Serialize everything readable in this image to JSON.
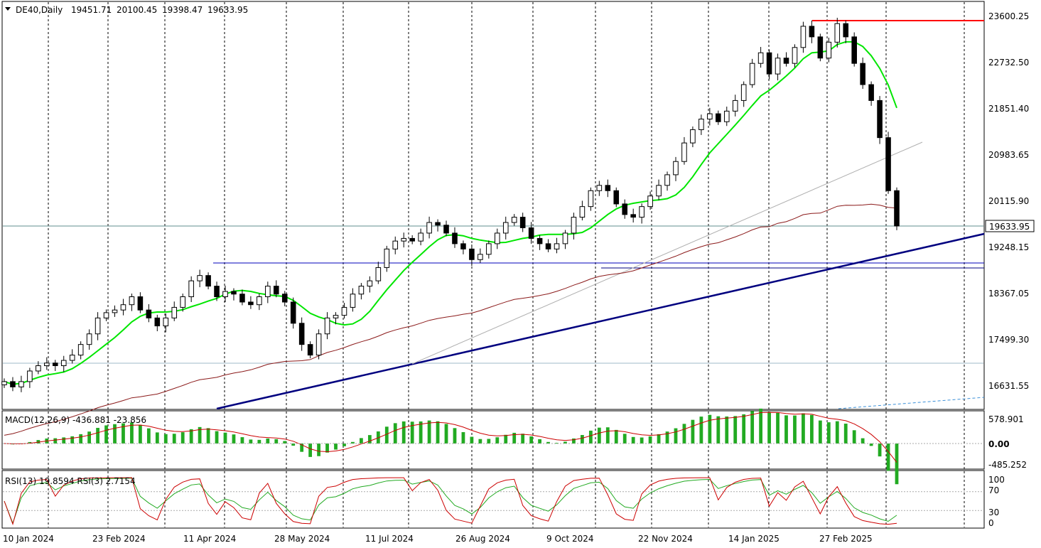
{
  "chart_data": [
    {
      "type": "candlestick",
      "title": "DE40,Daily",
      "ohlc_readout": [
        "19451.71",
        "20100.45",
        "19398.47",
        "19633.95"
      ],
      "last_price_label": "19633.95",
      "y_ticks": [
        "23600.25",
        "22732.50",
        "21851.40",
        "20983.65",
        "20115.90",
        "19248.15",
        "18367.05",
        "17499.30",
        "16631.55"
      ],
      "ylim": [
        16000,
        23800
      ],
      "last_price": 19633.95,
      "x_labels": [
        "10 Jan 2024",
        "23 Feb 2024",
        "11 Apr 2024",
        "28 May 2024",
        "11 Jul 2024",
        "26 Aug 2024",
        "9 Oct 2024",
        "22 Nov 2024",
        "14 Jan 2025",
        "27 Feb 2025"
      ],
      "colors": {
        "fast_ma": "#00e600",
        "slow_ma": "#8b1a1a",
        "trendline": "#00007f",
        "resistance": "#ff0000",
        "support": "#0000bb",
        "candle_up": "#000000",
        "candle_down": "#000000"
      },
      "series": [
        {
          "values": [
            16700,
            16600,
            16700,
            16900,
            17000,
            17050,
            17000,
            17100,
            17200,
            17400,
            17600,
            17900,
            18000,
            18050,
            18150,
            18300,
            18050,
            17900,
            17750,
            17900,
            18100,
            18300,
            18600,
            18700,
            18500,
            18300,
            18400,
            18350,
            18200,
            18150,
            18300,
            18500,
            18350,
            18200,
            17800,
            17400,
            17200,
            17600,
            17900,
            17950,
            18100,
            18350,
            18500,
            18600,
            18850,
            19200,
            19350,
            19400,
            19350,
            19500,
            19700,
            19650,
            19500,
            19300,
            19200,
            19000,
            19100,
            19300,
            19500,
            19700,
            19800,
            19600,
            19400,
            19300,
            19200,
            19300,
            19500,
            19800,
            20000,
            20300,
            20400,
            20300,
            20050,
            19850,
            19800,
            20000,
            20200,
            20400,
            20600,
            20850,
            21200,
            21450,
            21650,
            21750,
            21600,
            21800,
            22000,
            22300,
            22700,
            22900,
            22500,
            22800,
            22700,
            23000,
            23400,
            23200,
            22800,
            23100,
            23450,
            23200,
            22700,
            22300,
            22000,
            21300,
            20300,
            19634
          ]
        }
      ],
      "fast_ma_label": "",
      "slow_ma_label": ""
    },
    {
      "type": "macd",
      "label": "MACD(12,26,9) -436.881 -23.856",
      "y_ticks": [
        "578.901",
        "0.00",
        "-485.252"
      ],
      "ylim": [
        -560,
        640
      ]
    },
    {
      "type": "rsi",
      "label": "RSI(13) 19.8594  RSI(3) 2.7154",
      "y_ticks": [
        "100",
        "70",
        "30",
        "0"
      ],
      "ylim": [
        0,
        100
      ],
      "last_values": [
        19.8594,
        2.7154
      ]
    }
  ]
}
